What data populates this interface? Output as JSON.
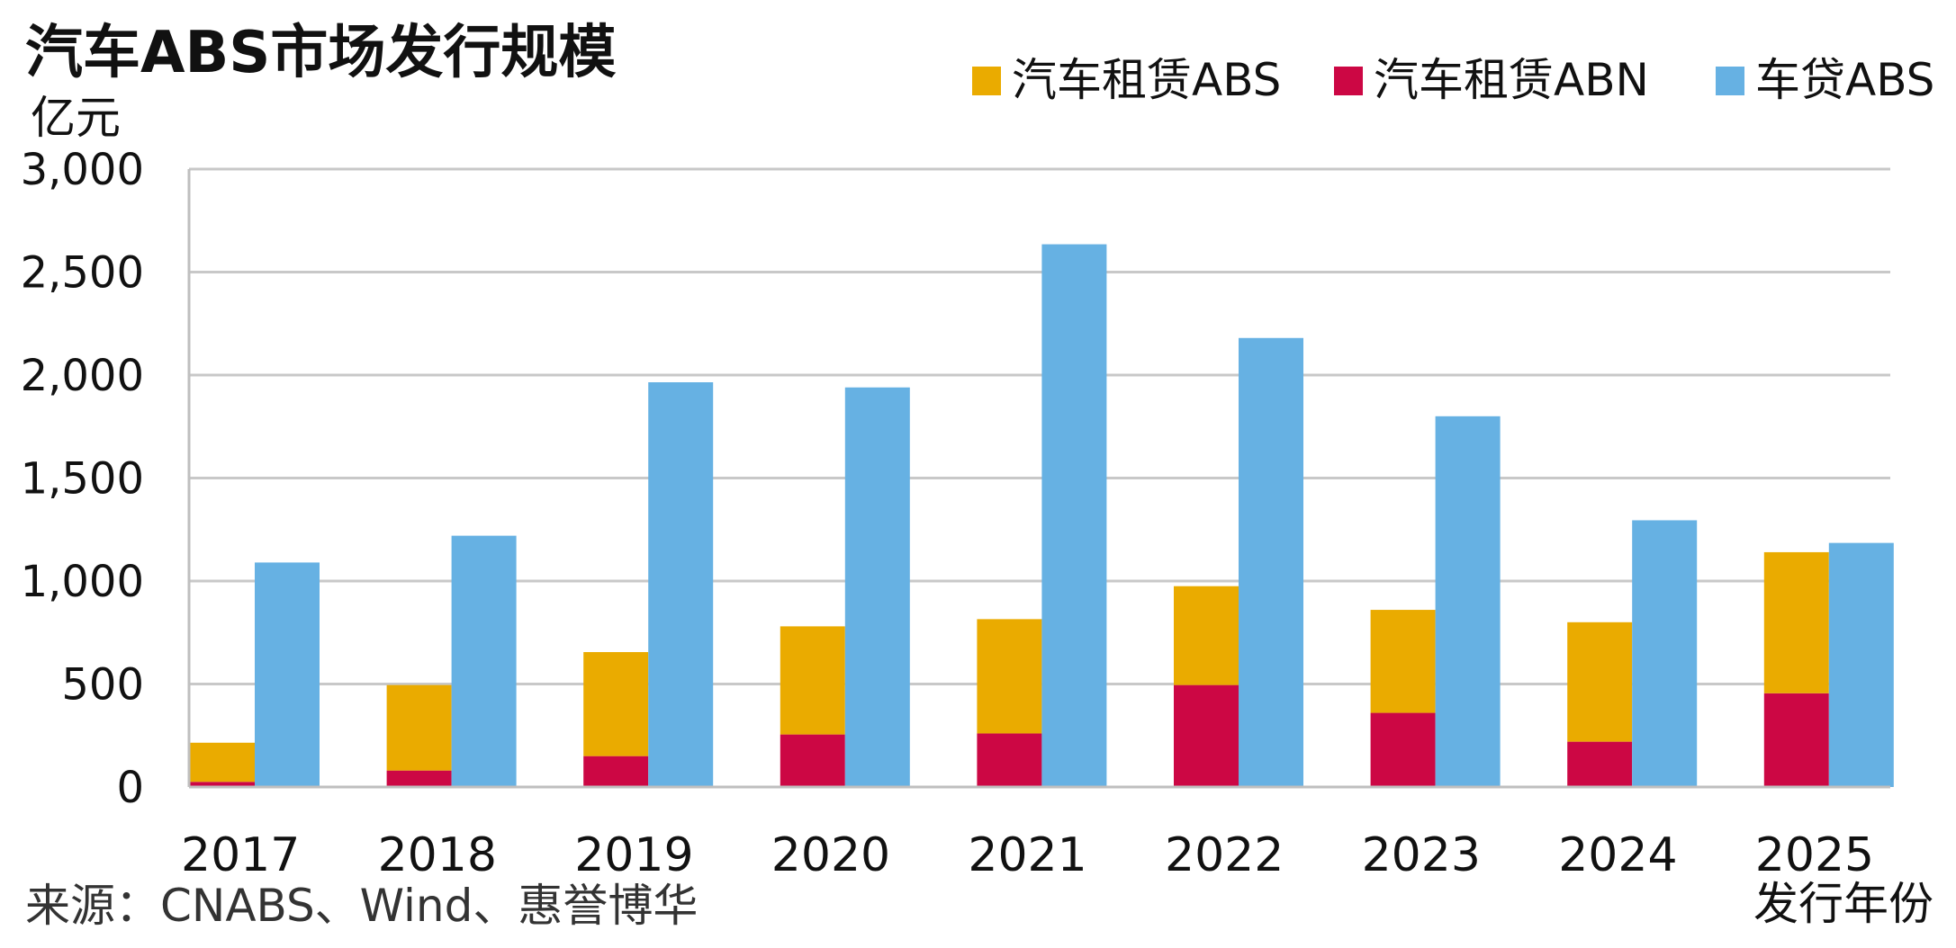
{
  "chart_data": {
    "type": "bar",
    "title": "汽车ABS市场发行规模",
    "ylabel": "亿元",
    "xlabel": "发行年份",
    "source": "来源：CNABS、Wind、惠誉博华",
    "categories": [
      "2017",
      "2018",
      "2019",
      "2020",
      "2021",
      "2022",
      "2023",
      "2024",
      "2025"
    ],
    "ylim": [
      0,
      3000
    ],
    "yticks": [
      0,
      500,
      1000,
      1500,
      2000,
      2500,
      3000
    ],
    "ytick_labels": [
      "0",
      "500",
      "1,000",
      "1,500",
      "2,000",
      "2,500",
      "3,000"
    ],
    "grid": true,
    "legend_position": "top-right",
    "stack_groups": [
      [
        "汽车租赁ABN",
        "汽车租赁ABS"
      ],
      [
        "车贷ABS"
      ]
    ],
    "series": [
      {
        "name": "汽车租赁ABS",
        "color": "#EAAB00",
        "values": [
          190,
          415,
          505,
          525,
          555,
          480,
          500,
          580,
          685
        ]
      },
      {
        "name": "汽车租赁ABN",
        "color": "#CC0744",
        "values": [
          25,
          80,
          150,
          255,
          260,
          495,
          360,
          220,
          455
        ]
      },
      {
        "name": "车贷ABS",
        "color": "#66B1E3",
        "values": [
          1090,
          1220,
          1965,
          1940,
          2635,
          2180,
          1800,
          1295,
          1185
        ]
      }
    ]
  }
}
